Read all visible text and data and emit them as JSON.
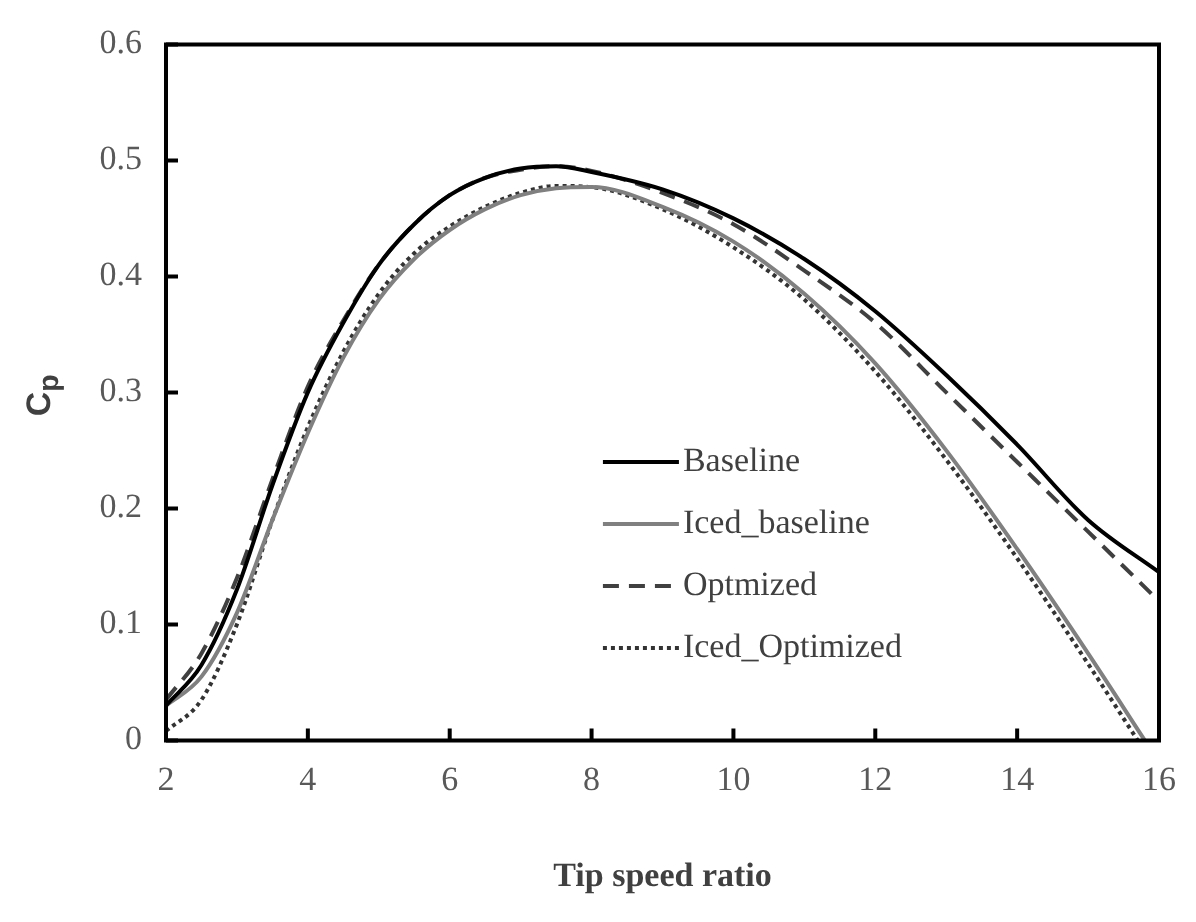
{
  "chart_data": {
    "type": "line",
    "xlabel": "Tip speed ratio",
    "ylabel": "C$_{p}$",
    "xlim": [
      2,
      16
    ],
    "xticks": [
      2,
      4,
      6,
      8,
      10,
      12,
      14,
      16
    ],
    "ylim": [
      0,
      0.6
    ],
    "yticks": [
      0,
      0.1,
      0.2,
      0.3,
      0.4,
      0.5,
      0.6
    ],
    "grid": false,
    "legend": "right",
    "marker": "none",
    "series": [
      {
        "name": "Baseline",
        "color": "#000000",
        "line_style": "solid",
        "x": [
          2,
          2.5,
          3,
          3.5,
          4,
          4.5,
          5,
          5.5,
          6,
          6.5,
          7,
          7.5,
          8,
          9,
          10,
          11,
          12,
          13,
          14,
          15,
          16
        ],
        "values": [
          0.03,
          0.065,
          0.13,
          0.22,
          0.3,
          0.36,
          0.41,
          0.445,
          0.47,
          0.485,
          0.493,
          0.495,
          0.49,
          0.475,
          0.45,
          0.415,
          0.37,
          0.315,
          0.255,
          0.19,
          0.145
        ]
      },
      {
        "name": "Iced_baseline",
        "color": "#808080",
        "line_style": "solid",
        "x": [
          2,
          2.5,
          3,
          3.5,
          4,
          4.5,
          5,
          5.5,
          6,
          6.5,
          7,
          7.5,
          8,
          9,
          10,
          11,
          12,
          13,
          14,
          15,
          15.8
        ],
        "values": [
          0.03,
          0.055,
          0.11,
          0.19,
          0.265,
          0.33,
          0.38,
          0.415,
          0.44,
          0.458,
          0.47,
          0.476,
          0.477,
          0.46,
          0.43,
          0.385,
          0.325,
          0.25,
          0.165,
          0.075,
          0
        ]
      },
      {
        "name": "Optmized",
        "color": "#404040",
        "line_style": "dashed",
        "x": [
          2,
          2.5,
          3,
          3.5,
          4,
          4.5,
          5,
          5.5,
          6,
          6.5,
          7,
          7.5,
          8,
          9,
          10,
          11,
          12,
          13,
          14,
          15,
          16
        ],
        "values": [
          0.035,
          0.075,
          0.14,
          0.225,
          0.305,
          0.362,
          0.41,
          0.445,
          0.47,
          0.485,
          0.492,
          0.495,
          0.491,
          0.472,
          0.445,
          0.405,
          0.36,
          0.3,
          0.24,
          0.18,
          0.12
        ]
      },
      {
        "name": "Iced_Optimized",
        "color": "#333333",
        "line_style": "dotted",
        "x": [
          2,
          2.5,
          3,
          3.5,
          4,
          4.5,
          5,
          5.5,
          6,
          6.5,
          7,
          7.5,
          8,
          9,
          10,
          11,
          12,
          13,
          14,
          15,
          15.7
        ],
        "values": [
          0.008,
          0.035,
          0.1,
          0.19,
          0.27,
          0.335,
          0.385,
          0.42,
          0.443,
          0.46,
          0.472,
          0.478,
          0.477,
          0.458,
          0.425,
          0.38,
          0.318,
          0.242,
          0.157,
          0.066,
          0
        ]
      }
    ]
  }
}
